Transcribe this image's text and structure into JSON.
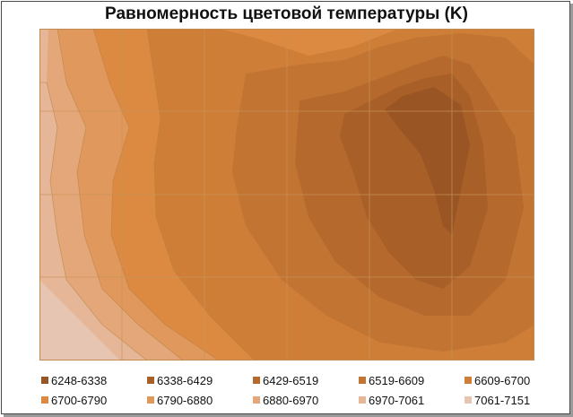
{
  "chart_data": {
    "type": "heatmap",
    "title": "Равномерность цветовой температуры (K)",
    "legend": {
      "placement": "bottom",
      "entries": [
        {
          "label": "6248-6338",
          "color": "#9a5524"
        },
        {
          "label": "6338-6429",
          "color": "#a86028"
        },
        {
          "label": "6429-6519",
          "color": "#b5692d"
        },
        {
          "label": "6519-6609",
          "color": "#c27432"
        },
        {
          "label": "6609-6700",
          "color": "#cf7e37"
        },
        {
          "label": "6700-6790",
          "color": "#dc8a42"
        },
        {
          "label": "6790-6880",
          "color": "#e0985c"
        },
        {
          "label": "6880-6970",
          "color": "#e3a77a"
        },
        {
          "label": "6970-7061",
          "color": "#e5b697"
        },
        {
          "label": "7061-7151",
          "color": "#e7c5b3"
        }
      ]
    },
    "grid": true
  }
}
